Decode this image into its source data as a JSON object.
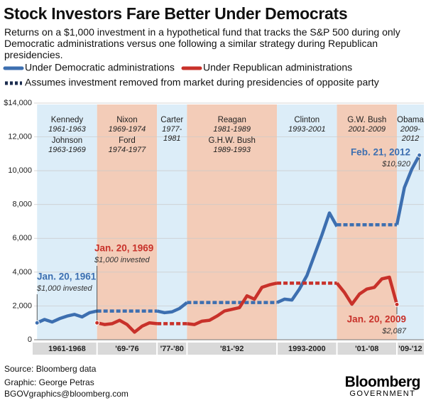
{
  "chart_data": {
    "type": "line",
    "title": "Stock Investors Fare Better Under Democrats",
    "subtitle": "Returns on a $1,000 investment in a hypothetical fund that tracks the S&P 500 during only Democratic administrations versus one following a similar strategy during Republican presidencies.",
    "legend_note": {
      "text": "Assumes investment removed from market during presidencies of opposite party",
      "color": "#1c2d4f"
    },
    "x": [
      1961,
      1962,
      1963,
      1964,
      1965,
      1966,
      1967,
      1968,
      1969,
      1970,
      1971,
      1972,
      1973,
      1974,
      1975,
      1976,
      1977,
      1978,
      1979,
      1980,
      1981,
      1982,
      1983,
      1984,
      1985,
      1986,
      1987,
      1988,
      1989,
      1990,
      1991,
      1992,
      1993,
      1994,
      1995,
      1996,
      1997,
      1998,
      1999,
      2000,
      2001,
      2002,
      2003,
      2004,
      2005,
      2006,
      2007,
      2008,
      2009,
      2010,
      2011,
      2012
    ],
    "series": [
      {
        "name": "Under Democratic administrations",
        "color": "#3d6fb0",
        "values": [
          1000,
          1200,
          1050,
          1250,
          1400,
          1500,
          1350,
          1600,
          1700,
          null,
          null,
          null,
          null,
          null,
          null,
          null,
          1700,
          1600,
          1650,
          1850,
          2200,
          null,
          null,
          null,
          null,
          null,
          null,
          null,
          null,
          null,
          null,
          null,
          2200,
          2400,
          2350,
          3000,
          3800,
          5000,
          6200,
          7500,
          6700,
          null,
          null,
          null,
          null,
          null,
          null,
          null,
          6800,
          9000,
          10100,
          10920
        ],
        "dashed_values": [
          null,
          null,
          null,
          null,
          null,
          null,
          null,
          null,
          1700,
          1700,
          1700,
          1700,
          1700,
          1700,
          1700,
          1700,
          1700,
          null,
          null,
          null,
          2200,
          2200,
          2200,
          2200,
          2200,
          2200,
          2200,
          2200,
          2200,
          2200,
          2200,
          2200,
          2200,
          null,
          null,
          null,
          null,
          null,
          null,
          null,
          6800,
          6800,
          6800,
          6800,
          6800,
          6800,
          6800,
          6800,
          6800,
          null,
          null,
          null
        ]
      },
      {
        "name": "Under Republican administrations",
        "color": "#c8312a",
        "values": [
          null,
          null,
          null,
          null,
          null,
          null,
          null,
          null,
          1000,
          900,
          950,
          1150,
          900,
          450,
          800,
          1000,
          950,
          null,
          null,
          null,
          950,
          900,
          1100,
          1150,
          1400,
          1700,
          1800,
          1900,
          2600,
          2400,
          3100,
          3250,
          3350,
          null,
          null,
          null,
          null,
          null,
          null,
          null,
          3350,
          2800,
          2100,
          2700,
          3000,
          3100,
          3600,
          3700,
          2087,
          null,
          null,
          null
        ],
        "dashed_values": [
          null,
          null,
          null,
          null,
          null,
          null,
          null,
          null,
          null,
          null,
          null,
          null,
          null,
          null,
          null,
          null,
          950,
          950,
          950,
          950,
          950,
          null,
          null,
          null,
          null,
          null,
          null,
          null,
          null,
          null,
          null,
          null,
          3350,
          3350,
          3350,
          3350,
          3350,
          3350,
          3350,
          3350,
          3350,
          null,
          null,
          null,
          null,
          null,
          null,
          null,
          null,
          null,
          null,
          null
        ]
      }
    ],
    "xlim": [
      1960.6,
      2012.6
    ],
    "ylim": [
      0,
      14000
    ],
    "yticks": [
      0,
      {
        "value": 2000,
        "label": "2,000"
      },
      {
        "value": 4000,
        "label": "4,000"
      },
      {
        "value": 6000,
        "label": "6,000"
      },
      {
        "value": 8000,
        "label": "8,000"
      },
      {
        "value": 10000,
        "label": "10,000"
      },
      {
        "value": 12000,
        "label": "12,000"
      },
      {
        "value": 14000,
        "label": "$14,000"
      }
    ],
    "grid": true,
    "band_colors": {
      "dem": "#dcedf8",
      "rep": "#f3ccb8"
    },
    "periods": [
      {
        "start": 1961,
        "end": 1969,
        "party": "dem",
        "label": "1961-1968",
        "presidents": [
          {
            "name": "Kennedy",
            "years": "1961-1963"
          },
          {
            "name": "Johnson",
            "years": "1963-1969"
          }
        ]
      },
      {
        "start": 1969,
        "end": 1977,
        "party": "rep",
        "label": "'69-'76",
        "presidents": [
          {
            "name": "Nixon",
            "years": "1969-1974"
          },
          {
            "name": "Ford",
            "years": "1974-1977"
          }
        ]
      },
      {
        "start": 1977,
        "end": 1981,
        "party": "dem",
        "label": "'77-'80",
        "presidents": [
          {
            "name": "Carter",
            "years": "1977-\n1981"
          }
        ]
      },
      {
        "start": 1981,
        "end": 1993,
        "party": "rep",
        "label": "'81-'92",
        "presidents": [
          {
            "name": "Reagan",
            "years": "1981-1989"
          },
          {
            "name": "G.H.W. Bush",
            "years": "1989-1993"
          }
        ]
      },
      {
        "start": 1993,
        "end": 2001,
        "party": "dem",
        "label": "1993-2000",
        "presidents": [
          {
            "name": "Clinton",
            "years": "1993-2001"
          }
        ]
      },
      {
        "start": 2001,
        "end": 2009,
        "party": "rep",
        "label": "'01-'08",
        "presidents": [
          {
            "name": "G.W. Bush",
            "years": "2001-2009"
          }
        ]
      },
      {
        "start": 2009,
        "end": 2012.6,
        "party": "dem",
        "label": "'09-'12",
        "presidents": [
          {
            "name": "Obama",
            "years": "2009-\n2012"
          }
        ]
      }
    ],
    "annotations": [
      {
        "title": "Jan. 20, 1961",
        "text": "$1,000 invested",
        "color": "#3d6fb0",
        "x": 1961,
        "y": 1000
      },
      {
        "title": "Jan. 20, 1969",
        "text": "$1,000 invested",
        "color": "#c8312a",
        "x": 1969,
        "y": 1000
      },
      {
        "title": "Feb. 21, 2012",
        "text": "$10,920",
        "color": "#3d6fb0",
        "x": 2012,
        "y": 10920
      },
      {
        "title": "Jan. 20, 2009",
        "text": "$2,087",
        "color": "#c8312a",
        "x": 2009,
        "y": 2087
      }
    ],
    "source": "Source: Bloomberg data",
    "credit": "Graphic: George Petras",
    "email": "BGOVgraphics@bloomberg.com",
    "logo": {
      "name": "Bloomberg",
      "sub": "GOVERNMENT"
    }
  }
}
